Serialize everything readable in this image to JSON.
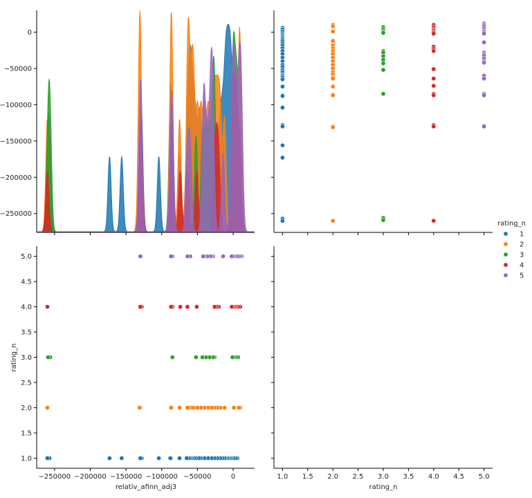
{
  "chart_data": {
    "type": "scatter",
    "title": "",
    "colors": [
      "#1f77b4",
      "#ff7f0e",
      "#2ca02c",
      "#d62728",
      "#9467bd"
    ],
    "series": [
      {
        "name": "1",
        "rating": 1,
        "values": [
          6000,
          4000,
          1000,
          -2000,
          -4000,
          -6000,
          -8000,
          -10000,
          -12000,
          -15000,
          -18000,
          -22000,
          -26000,
          -30000,
          -35000,
          -40000,
          -45000,
          -48000,
          -52000,
          -55000,
          -58000,
          -60000,
          -62000,
          -65000,
          -75000,
          -87000,
          -88000,
          -104000,
          -128000,
          -130000,
          -156000,
          -173000,
          -257000,
          -260000
        ]
      },
      {
        "name": "2",
        "rating": 2,
        "values": [
          10000,
          8000,
          1000,
          -12000,
          -18000,
          -22000,
          -26000,
          -30000,
          -35000,
          -40000,
          -45000,
          -50000,
          -55000,
          -58000,
          -62000,
          -64000,
          -75000,
          -86000,
          -87000,
          -130000,
          -131000,
          -260000
        ]
      },
      {
        "name": "3",
        "rating": 3,
        "values": [
          7000,
          4000,
          1000,
          -1000,
          -26000,
          -28000,
          -33000,
          -38000,
          -43000,
          -52000,
          -85000,
          -256000,
          -259000
        ]
      },
      {
        "name": "4",
        "rating": 4,
        "values": [
          10000,
          7000,
          4000,
          2000,
          0,
          -2000,
          -20000,
          -23000,
          -26000,
          -51000,
          -64000,
          -74000,
          -85000,
          -87000,
          -128000,
          -130000,
          -260000
        ]
      },
      {
        "name": "5",
        "rating": 5,
        "values": [
          12000,
          10000,
          8000,
          5000,
          2000,
          0,
          -2000,
          -14000,
          -28000,
          -30000,
          -32000,
          -36000,
          -40000,
          -42000,
          -60000,
          -64000,
          -85000,
          -87000,
          -129000,
          -130000
        ]
      }
    ],
    "panels": {
      "kde": {
        "xlim": [
          -275000,
          30000
        ],
        "ylim": [
          -276000,
          30000
        ]
      },
      "rating_vs_afinn": {
        "xlim": [
          -275000,
          30000
        ],
        "ylim": [
          0.8,
          5.2
        ]
      },
      "afinn_vs_rating": {
        "xlim": [
          0.83,
          5.17
        ],
        "ylim": [
          -276000,
          30000
        ]
      }
    },
    "axes": {
      "x_afinn_label": "relativ_afinn_adj3",
      "x_rating_label": "rating_n",
      "y_rating_label": "rating_n",
      "afinn_ticks": [
        -250000,
        -200000,
        -150000,
        -100000,
        -50000,
        0
      ],
      "afinn_tick_labels": [
        "−250000",
        "−200000",
        "−150000",
        "−100000",
        "−50000",
        "0"
      ],
      "rating_ticks": [
        1.0,
        1.5,
        2.0,
        2.5,
        3.0,
        3.5,
        4.0,
        4.5,
        5.0
      ],
      "rating_tick_labels": [
        "1.0",
        "1.5",
        "2.0",
        "2.5",
        "3.0",
        "3.5",
        "4.0",
        "4.5",
        "5.0"
      ]
    },
    "legend": {
      "title": "rating_n",
      "placement": "right",
      "entries": [
        "1",
        "2",
        "3",
        "4",
        "5"
      ]
    },
    "grid": false
  }
}
